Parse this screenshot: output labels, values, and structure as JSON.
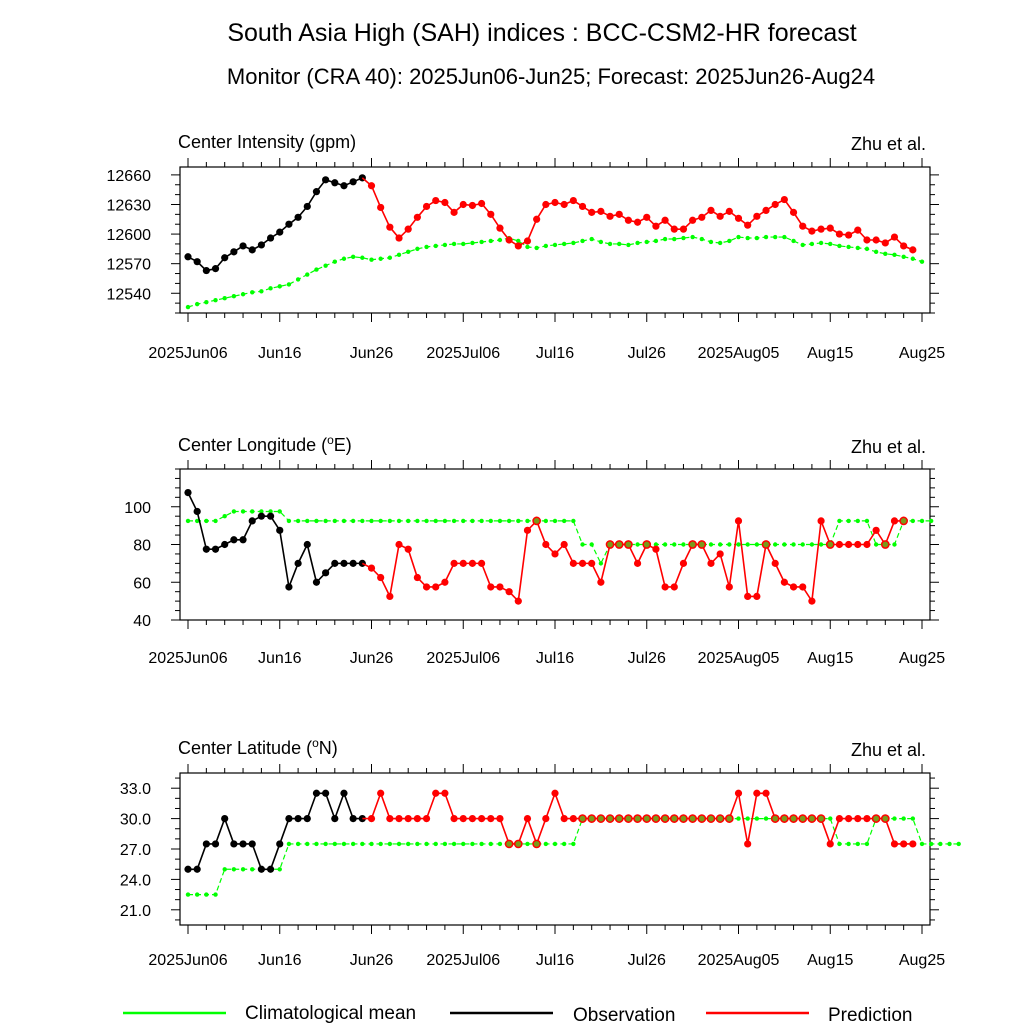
{
  "title": "South Asia High (SAH) indices : BCC-CSM2-HR forecast",
  "subtitle": "Monitor (CRA 40): 2025Jun06-Jun25; Forecast: 2025Jun26-Aug24",
  "colors": {
    "climatology": "#00ff00",
    "observation": "#000000",
    "prediction": "#ff0000"
  },
  "legend": [
    {
      "label": "Climatological mean",
      "color": "#00ff00"
    },
    {
      "label": "Observation",
      "color": "#000000"
    },
    {
      "label": "Prediction",
      "color": "#ff0000"
    }
  ],
  "x_tick_labels": [
    "2025Jun06",
    "Jun16",
    "Jun26",
    "2025Jul06",
    "Jul16",
    "Jul26",
    "2025Aug05",
    "Aug15",
    "Aug25"
  ],
  "chart_data": [
    {
      "type": "line",
      "title": "Center Intensity (gpm)",
      "author": "Zhu et al.",
      "x_start": "2025-06-06",
      "x_end": "2025-08-25",
      "ylim": [
        12520,
        12668
      ],
      "yticks": [
        "12540",
        "12570",
        "12600",
        "12630",
        "12660"
      ],
      "series": [
        {
          "name": "Climatological mean",
          "x_start": "2025-06-06",
          "values": [
            12526,
            12529,
            12531,
            12533,
            12535,
            12537,
            12539,
            12541,
            12542,
            12545,
            12547,
            12549,
            12554,
            12559,
            12564,
            12568,
            12572,
            12575,
            12577,
            12576,
            12574,
            12575,
            12576,
            12579,
            12582,
            12585,
            12587,
            12588,
            12589,
            12590,
            12590,
            12591,
            12592,
            12593,
            12594,
            12596,
            12593,
            12587,
            12586,
            12588,
            12589,
            12590,
            12591,
            12593,
            12595,
            12592,
            12590,
            12590,
            12589,
            12591,
            12592,
            12593,
            12595,
            12595,
            12596,
            12597,
            12595,
            12592,
            12591,
            12593,
            12597,
            12596,
            12596,
            12597,
            12597,
            12597,
            12593,
            12589,
            12590,
            12591,
            12590,
            12588,
            12587,
            12586,
            12585,
            12582,
            12580,
            12579,
            12577,
            12575,
            12572
          ]
        },
        {
          "name": "Observation",
          "x_start": "2025-06-06",
          "values": [
            12577,
            12572,
            12563,
            12565,
            12576,
            12582,
            12588,
            12584,
            12589,
            12596,
            12602,
            12610,
            12617,
            12628,
            12643,
            12655,
            12652,
            12649,
            12653,
            12657
          ]
        },
        {
          "name": "Prediction",
          "x_start": "2025-06-26",
          "values": [
            12649,
            12627,
            12607,
            12596,
            12605,
            12617,
            12628,
            12634,
            12632,
            12622,
            12630,
            12629,
            12631,
            12620,
            12606,
            12594,
            12588,
            12593,
            12615,
            12630,
            12632,
            12630,
            12634,
            12628,
            12622,
            12623,
            12618,
            12620,
            12614,
            12612,
            12617,
            12608,
            12614,
            12605,
            12605,
            12614,
            12617,
            12624,
            12618,
            12623,
            12616,
            12609,
            12618,
            12624,
            12630,
            12635,
            12622,
            12608,
            12603,
            12605,
            12606,
            12600,
            12599,
            12604,
            12594,
            12594,
            12591,
            12597,
            12588,
            12584
          ]
        }
      ]
    },
    {
      "type": "line",
      "title": "Center Longitude (oE)",
      "author": "Zhu et al.",
      "x_start": "2025-06-06",
      "x_end": "2025-08-25",
      "ylim": [
        40,
        120
      ],
      "yticks": [
        "40",
        "60",
        "80",
        "100"
      ],
      "series": [
        {
          "name": "Climatological mean",
          "x_start": "2025-06-06",
          "values": [
            92.5,
            92.5,
            92.5,
            92.5,
            95,
            97.5,
            97.5,
            97.5,
            97.5,
            97.5,
            97.5,
            92.5,
            92.5,
            92.5,
            92.5,
            92.5,
            92.5,
            92.5,
            92.5,
            92.5,
            92.5,
            92.5,
            92.5,
            92.5,
            92.5,
            92.5,
            92.5,
            92.5,
            92.5,
            92.5,
            92.5,
            92.5,
            92.5,
            92.5,
            92.5,
            92.5,
            92.5,
            92.5,
            92.5,
            92.5,
            92.5,
            92.5,
            92.5,
            80,
            80,
            70,
            80,
            80,
            80,
            80,
            80,
            80,
            80,
            80,
            80,
            80,
            80,
            80,
            80,
            80,
            80,
            80,
            80,
            80,
            80,
            80,
            80,
            80,
            80,
            80,
            80,
            92.5,
            92.5,
            92.5,
            92.5,
            80,
            80,
            80,
            92.5,
            92.5,
            92.5,
            92.5
          ]
        },
        {
          "name": "Observation",
          "x_start": "2025-06-06",
          "values": [
            107.5,
            97.5,
            77.5,
            77.5,
            80,
            82.5,
            82.5,
            92.5,
            95,
            95,
            87.5,
            57.5,
            70,
            80,
            60,
            65,
            70,
            70,
            70,
            70
          ]
        },
        {
          "name": "Prediction",
          "x_start": "2025-06-26",
          "values": [
            67.5,
            62.5,
            52.5,
            80,
            77.5,
            62.5,
            57.5,
            57.5,
            60,
            70,
            70,
            70,
            70,
            57.5,
            57.5,
            55,
            50,
            87.5,
            92.5,
            80,
            75,
            80,
            70,
            70,
            70,
            60,
            80,
            80,
            80,
            70,
            80,
            77.5,
            57.5,
            57.5,
            70,
            80,
            80,
            70,
            75,
            57.5,
            92.5,
            52.5,
            52.5,
            80,
            70,
            60,
            57.5,
            57.5,
            50,
            92.5,
            80,
            80,
            80,
            80,
            80,
            87.5,
            80,
            92.5,
            92.5
          ]
        }
      ]
    },
    {
      "type": "line",
      "title": "Center Latitude (oN)",
      "author": "Zhu et al.",
      "x_start": "2025-06-06",
      "x_end": "2025-08-25",
      "ylim": [
        19.5,
        34.5
      ],
      "yticks": [
        "21.0",
        "24.0",
        "27.0",
        "30.0",
        "33.0"
      ],
      "series": [
        {
          "name": "Climatological mean",
          "x_start": "2025-06-06",
          "values": [
            22.5,
            22.5,
            22.5,
            22.5,
            25,
            25,
            25,
            25,
            25,
            25,
            25,
            27.5,
            27.5,
            27.5,
            27.5,
            27.5,
            27.5,
            27.5,
            27.5,
            27.5,
            27.5,
            27.5,
            27.5,
            27.5,
            27.5,
            27.5,
            27.5,
            27.5,
            27.5,
            27.5,
            27.5,
            27.5,
            27.5,
            27.5,
            27.5,
            27.5,
            27.5,
            27.5,
            27.5,
            27.5,
            27.5,
            27.5,
            27.5,
            30,
            30,
            30,
            30,
            30,
            30,
            30,
            30,
            30,
            30,
            30,
            30,
            30,
            30,
            30,
            30,
            30,
            30,
            30,
            30,
            30,
            30,
            30,
            30,
            30,
            30,
            30,
            30,
            27.5,
            27.5,
            27.5,
            27.5,
            30,
            30,
            30,
            30,
            30,
            27.5,
            27.5,
            27.5,
            27.5,
            27.5
          ]
        },
        {
          "name": "Observation",
          "x_start": "2025-06-06",
          "values": [
            25,
            25,
            27.5,
            27.5,
            30,
            27.5,
            27.5,
            27.5,
            25,
            25,
            27.5,
            30,
            30,
            30,
            32.5,
            32.5,
            30,
            32.5,
            30,
            30
          ]
        },
        {
          "name": "Prediction",
          "x_start": "2025-06-26",
          "values": [
            30,
            32.5,
            30,
            30,
            30,
            30,
            30,
            32.5,
            32.5,
            30,
            30,
            30,
            30,
            30,
            30,
            27.5,
            27.5,
            30,
            27.5,
            30,
            32.5,
            30,
            30,
            30,
            30,
            30,
            30,
            30,
            30,
            30,
            30,
            30,
            30,
            30,
            30,
            30,
            30,
            30,
            30,
            30,
            32.5,
            27.5,
            32.5,
            32.5,
            30,
            30,
            30,
            30,
            30,
            30,
            27.5,
            30,
            30,
            30,
            30,
            30,
            30,
            27.5,
            27.5,
            27.5
          ]
        }
      ]
    }
  ]
}
